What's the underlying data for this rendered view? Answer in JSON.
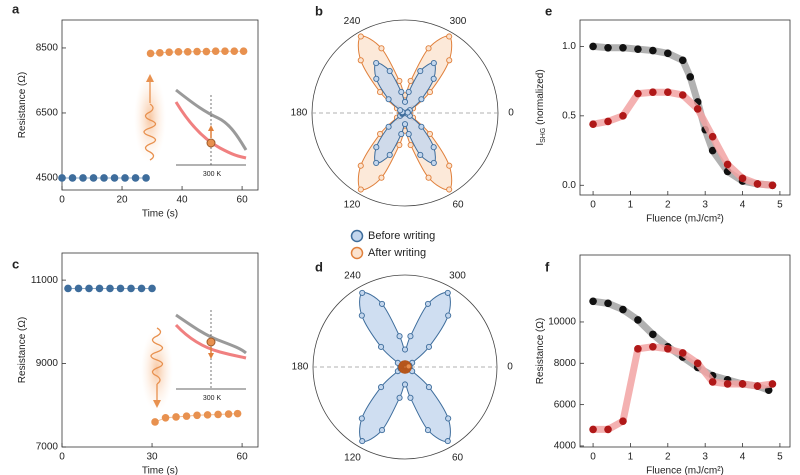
{
  "chart_data": [
    {
      "panel": "a",
      "type": "line",
      "xlabel": "Time (s)",
      "ylabel": "Resistance (Ω)",
      "annotation": "300 K",
      "xlim": [
        0,
        65.3
      ],
      "ylim": [
        4130,
        9360
      ],
      "xticks": [
        0,
        20,
        40,
        60
      ],
      "yticks": [
        4500,
        6500,
        8500
      ],
      "series": [
        {
          "color": "#3e6d9c",
          "x": [
            0,
            3.5,
            7,
            10.5,
            14,
            17.5,
            21,
            24.5,
            28
          ],
          "values": [
            4500,
            4500,
            4500,
            4500,
            4500,
            4500,
            4500,
            4500,
            4500
          ]
        },
        {
          "color": "#e8914f",
          "x": [
            29.5,
            32.6,
            35.7,
            38.8,
            41.9,
            45,
            48.1,
            51.2,
            54.3,
            57.4,
            60.5
          ],
          "values": [
            8330,
            8350,
            8370,
            8380,
            8380,
            8390,
            8390,
            8400,
            8400,
            8400,
            8400
          ]
        }
      ]
    },
    {
      "panel": "b",
      "type": "polar",
      "rlim": [
        0,
        1
      ],
      "thetaticks": [
        0,
        60,
        120,
        180,
        240,
        300
      ],
      "legend": true,
      "theta": [
        0,
        10,
        20,
        30,
        40,
        50,
        60,
        70,
        80,
        90,
        100,
        110,
        120,
        130,
        140,
        150,
        160,
        170,
        180,
        190,
        200,
        210,
        220,
        230,
        240,
        250,
        260,
        270,
        280,
        290,
        300,
        310,
        320,
        330,
        340,
        350
      ],
      "series": [
        {
          "name": "After writing",
          "color": "#e0803c",
          "fill": "#fbe3cf",
          "values": [
            0.05,
            0.05,
            0.05,
            0.1,
            0.35,
            0.74,
            0.95,
            0.74,
            0.35,
            0.19,
            0.35,
            0.74,
            0.95,
            0.74,
            0.35,
            0.1,
            0.05,
            0.05,
            0.05,
            0.05,
            0.05,
            0.1,
            0.35,
            0.74,
            0.95,
            0.74,
            0.35,
            0.19,
            0.35,
            0.74,
            0.95,
            0.74,
            0.35,
            0.1,
            0.05,
            0.05
          ]
        },
        {
          "name": "Before writing",
          "color": "#3e6d9c",
          "fill": "#c3d6ed",
          "values": [
            0.03,
            0.03,
            0.03,
            0.06,
            0.23,
            0.48,
            0.62,
            0.48,
            0.23,
            0.12,
            0.23,
            0.48,
            0.62,
            0.48,
            0.23,
            0.06,
            0.03,
            0.03,
            0.03,
            0.03,
            0.03,
            0.06,
            0.23,
            0.48,
            0.62,
            0.48,
            0.23,
            0.12,
            0.23,
            0.48,
            0.62,
            0.48,
            0.23,
            0.06,
            0.03,
            0.03
          ]
        }
      ]
    },
    {
      "panel": "c",
      "type": "line",
      "xlabel": "Time (s)",
      "ylabel": "Resistance (Ω)",
      "annotation": "300 K",
      "xlim": [
        0,
        65.3
      ],
      "ylim": [
        7000,
        11650
      ],
      "xticks": [
        0,
        30,
        60
      ],
      "yticks": [
        7000,
        9000,
        11000
      ],
      "series": [
        {
          "color": "#3e6d9c",
          "x": [
            2,
            5.5,
            9,
            12.5,
            16,
            19.5,
            23,
            26.5,
            30
          ],
          "values": [
            10800,
            10800,
            10800,
            10800,
            10800,
            10800,
            10800,
            10800,
            10800
          ]
        },
        {
          "color": "#e8914f",
          "x": [
            31,
            34.5,
            38,
            41.5,
            45,
            48.5,
            52,
            55.5,
            58.5
          ],
          "values": [
            7600,
            7700,
            7720,
            7740,
            7760,
            7770,
            7780,
            7790,
            7800
          ]
        }
      ]
    },
    {
      "panel": "d",
      "type": "polar",
      "rlim": [
        0,
        1
      ],
      "thetaticks": [
        0,
        60,
        120,
        180,
        240,
        300
      ],
      "theta": [
        0,
        10,
        20,
        30,
        40,
        50,
        60,
        70,
        80,
        90,
        100,
        110,
        120,
        130,
        140,
        150,
        160,
        170,
        180,
        190,
        200,
        210,
        220,
        230,
        240,
        250,
        260,
        270,
        280,
        290,
        300,
        310,
        320,
        330,
        340,
        350
      ],
      "series": [
        {
          "color": "#3e6d9c",
          "fill": "#c3d6ed",
          "values": [
            0.05,
            0.05,
            0.05,
            0.09,
            0.34,
            0.73,
            0.93,
            0.73,
            0.34,
            0.19,
            0.34,
            0.73,
            0.93,
            0.73,
            0.34,
            0.09,
            0.05,
            0.05,
            0.05,
            0.05,
            0.05,
            0.09,
            0.34,
            0.73,
            0.93,
            0.73,
            0.34,
            0.19,
            0.34,
            0.73,
            0.93,
            0.73,
            0.34,
            0.09,
            0.05,
            0.05
          ]
        },
        {
          "color": "#b5561c",
          "fill": "#e8914f",
          "values": [
            0.04,
            0.04,
            0.04,
            0.04,
            0.04,
            0.04,
            0.04,
            0.04,
            0.04,
            0.04,
            0.04,
            0.04,
            0.04,
            0.04,
            0.04,
            0.04,
            0.04,
            0.04,
            0.04,
            0.04,
            0.04,
            0.04,
            0.04,
            0.04,
            0.04,
            0.04,
            0.04,
            0.04,
            0.04,
            0.04,
            0.04,
            0.04,
            0.04,
            0.04,
            0.04,
            0.04
          ]
        }
      ]
    },
    {
      "panel": "e",
      "type": "line",
      "xlabel": "Fluence (mJ/cm²)",
      "ylabel": "I",
      "ylabel_sub": "SHG",
      "ylabel_rest": " (normalized)",
      "xlim": [
        -0.35,
        5.27
      ],
      "ylim": [
        -0.07,
        1.19
      ],
      "xticks": [
        0,
        1,
        2,
        3,
        4,
        5
      ],
      "yticks": [
        {
          "value": 0,
          "label": "0.0"
        },
        0.5,
        {
          "value": 1,
          "label": "1.0"
        }
      ],
      "series": [
        {
          "color": "#111111",
          "line_color": "#a3a3a3",
          "x": [
            0,
            0.4,
            0.8,
            1.2,
            1.6,
            2.0,
            2.4,
            2.6,
            2.8,
            3.0,
            3.2,
            3.6,
            4.0,
            4.4,
            4.8
          ],
          "values": [
            1.0,
            0.99,
            0.99,
            0.98,
            0.97,
            0.95,
            0.9,
            0.78,
            0.6,
            0.4,
            0.25,
            0.1,
            0.03,
            0.01,
            0.0
          ]
        },
        {
          "color": "#b01818",
          "line_color": "#f2a3a3",
          "x": [
            0,
            0.4,
            0.8,
            1.2,
            1.6,
            2.0,
            2.4,
            2.8,
            3.2,
            3.6,
            4.0,
            4.4,
            4.8
          ],
          "values": [
            0.44,
            0.46,
            0.5,
            0.66,
            0.67,
            0.67,
            0.65,
            0.55,
            0.35,
            0.15,
            0.05,
            0.01,
            0.0
          ]
        }
      ]
    },
    {
      "panel": "f",
      "type": "line",
      "xlabel": "Fluence (mJ/cm²)",
      "ylabel": "Resistance (Ω)",
      "xlim": [
        -0.35,
        5.27
      ],
      "ylim": [
        3950,
        13240
      ],
      "xticks": [
        0,
        1,
        2,
        3,
        4,
        5
      ],
      "yticks": [
        4000,
        6000,
        8000,
        10000
      ],
      "series": [
        {
          "color": "#111111",
          "line_color": "#a3a3a3",
          "x": [
            0,
            0.4,
            0.8,
            1.2,
            1.6,
            2.0,
            2.4,
            2.8,
            3.2,
            3.6,
            4.0,
            4.4,
            4.7
          ],
          "values": [
            11000,
            10900,
            10600,
            10100,
            9400,
            8800,
            8300,
            7800,
            7400,
            7200,
            7000,
            6900,
            6700
          ]
        },
        {
          "color": "#b01818",
          "line_color": "#f2a3a3",
          "x": [
            0,
            0.4,
            0.8,
            1.2,
            1.6,
            2.0,
            2.4,
            2.8,
            3.2,
            3.6,
            4.0,
            4.4,
            4.8
          ],
          "values": [
            4800,
            4800,
            5200,
            8700,
            8800,
            8700,
            8500,
            8000,
            7100,
            7000,
            7000,
            6900,
            7000
          ]
        }
      ]
    }
  ]
}
